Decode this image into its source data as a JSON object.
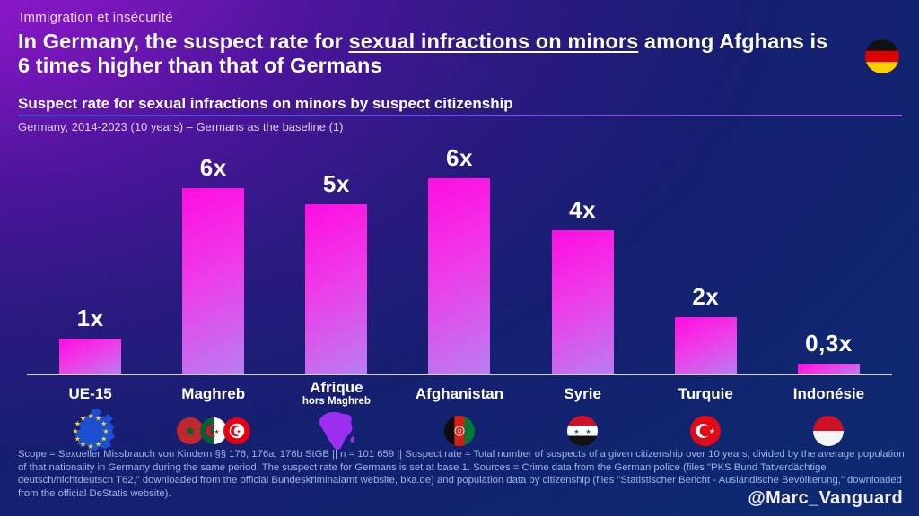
{
  "header": {
    "kicker": "Immigration et insécurité",
    "title_part1": "In Germany, the suspect rate for ",
    "title_underlined": "sexual infractions on minors",
    "title_part2": " among Afghans is 6 times higher than that of Germans",
    "flag_icon": "germany-flag"
  },
  "subtitle": {
    "heading": "Suspect rate for sexual infractions on minors by suspect citizenship",
    "subheading": "Germany, 2014-2023 (10 years) – Germans as the baseline (1)"
  },
  "chart_data": {
    "type": "bar",
    "categories": [
      "UE-15",
      "Maghreb",
      "Afrique",
      "Afghanistan",
      "Syrie",
      "Turquie",
      "Indonésie"
    ],
    "category_sublabels": [
      "",
      "",
      "hors Maghreb",
      "",
      "",
      "",
      ""
    ],
    "value_labels": [
      "1x",
      "6x",
      "5x",
      "6x",
      "4x",
      "2x",
      "0,3x"
    ],
    "values": [
      1.1,
      5.7,
      5.2,
      6.0,
      4.4,
      1.75,
      0.33
    ],
    "baseline_note": "Germans as the baseline = 1",
    "icons": [
      "eu-map",
      "maghreb-flags",
      "africa-map",
      "afghanistan-flag",
      "syria-flag",
      "turkey-flag",
      "indonesia-flag"
    ],
    "bar_gradient": [
      "#ff0ce2",
      "#ba7df2"
    ],
    "grid": false,
    "legend": false
  },
  "footer": {
    "note": "Scope = Sexueller Missbrauch von Kindern §§ 176, 176a, 176b StGB || n = 101 659 || Suspect rate = Total number of suspects of a given citizenship over 10 years, divided by the average population of that nationality in Germany during the same period. The suspect rate for Germans is set at base 1. Sources = Crime data from the German police (files \"PKS Bund Tatverdächtige deutsch/nichtdeutsch T62,\" downloaded from the official Bundeskriminalamt website, bka.de) and population data by citizenship (files \"Statistischer Bericht - Ausländische Bevölkerung,\" downloaded from the official DeStatis website).",
    "handle": "@Marc_Vanguard"
  },
  "colors": {
    "background_topleft": "#a31bdb",
    "background_bottomright": "#0d2a70",
    "bar_top": "#ff0ce2",
    "bar_bottom": "#ba7df2",
    "rule_left": "#2e4ecf",
    "rule_right": "#9a5cf0",
    "footer_text": "#9db4e8"
  }
}
